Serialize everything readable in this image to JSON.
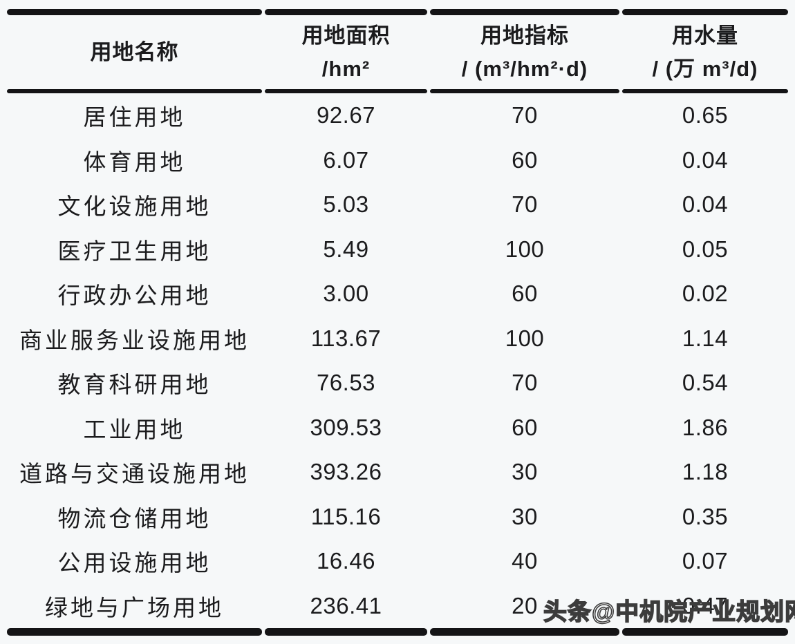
{
  "table": {
    "headers": {
      "name": "用地名称",
      "area_line1": "用地面积",
      "area_line2": "/hm²",
      "index_line1": "用地指标",
      "index_line2": "/ (m³/hm²·d)",
      "water_line1": "用水量",
      "water_line2": "/ (万 m³/d)"
    },
    "rows": [
      {
        "name": "居住用地",
        "area": "92.67",
        "index": "70",
        "water": "0.65"
      },
      {
        "name": "体育用地",
        "area": "6.07",
        "index": "60",
        "water": "0.04"
      },
      {
        "name": "文化设施用地",
        "area": "5.03",
        "index": "70",
        "water": "0.04"
      },
      {
        "name": "医疗卫生用地",
        "area": "5.49",
        "index": "100",
        "water": "0.05"
      },
      {
        "name": "行政办公用地",
        "area": "3.00",
        "index": "60",
        "water": "0.02"
      },
      {
        "name": "商业服务业设施用地",
        "area": "113.67",
        "index": "100",
        "water": "1.14"
      },
      {
        "name": "教育科研用地",
        "area": "76.53",
        "index": "70",
        "water": "0.54"
      },
      {
        "name": "工业用地",
        "area": "309.53",
        "index": "60",
        "water": "1.86"
      },
      {
        "name": "道路与交通设施用地",
        "area": "393.26",
        "index": "30",
        "water": "1.18"
      },
      {
        "name": "物流仓储用地",
        "area": "115.16",
        "index": "30",
        "water": "0.35"
      },
      {
        "name": "公用设施用地",
        "area": "16.46",
        "index": "40",
        "water": "0.07"
      },
      {
        "name": "绿地与广场用地",
        "area": "236.41",
        "index": "20",
        "water": "0.47"
      }
    ]
  },
  "watermark": {
    "text": "头条@中机院产业规划网"
  },
  "colors": {
    "text": "#1b1b1d",
    "border": "#141416",
    "background": "#f6f8f9",
    "watermark_fill": "#ffffff",
    "watermark_outline": "#3c3c3c"
  }
}
